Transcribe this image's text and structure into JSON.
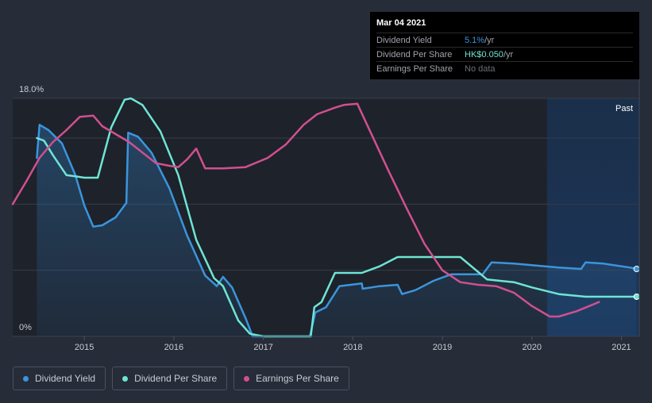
{
  "tooltip": {
    "date": "Mar 04 2021",
    "rows": [
      {
        "label": "Dividend Yield",
        "value": "5.1%",
        "unit": " /yr",
        "color": "#3a95dd"
      },
      {
        "label": "Dividend Per Share",
        "value": "HK$0.050",
        "unit": " /yr",
        "color": "#6ee5d4"
      },
      {
        "label": "Earnings Per Share",
        "value": "No data",
        "unit": "",
        "color": "#6b6f75"
      }
    ]
  },
  "legend": [
    {
      "label": "Dividend Yield",
      "color": "#3a95dd"
    },
    {
      "label": "Dividend Per Share",
      "color": "#6ee5d4"
    },
    {
      "label": "Earnings Per Share",
      "color": "#d0508f"
    }
  ],
  "chart_data": {
    "type": "line",
    "title": "",
    "xlabel": "",
    "ylabel": "",
    "xlim": [
      2014.2,
      2021.2
    ],
    "ylim": [
      0,
      18
    ],
    "y_tick_labels": [
      "18.0%",
      "0%"
    ],
    "x_ticks": [
      2015,
      2016,
      2017,
      2018,
      2019,
      2020,
      2021
    ],
    "x_tick_labels": [
      "2015",
      "2016",
      "2017",
      "2018",
      "2019",
      "2020",
      "2021"
    ],
    "past_label": "Past",
    "past_region_start": 2020.17,
    "series": [
      {
        "name": "Dividend Yield",
        "color": "#3a95dd",
        "fill": true,
        "x": [
          2014.47,
          2014.5,
          2014.6,
          2014.75,
          2014.9,
          2015.0,
          2015.1,
          2015.2,
          2015.35,
          2015.47,
          2015.49,
          2015.6,
          2015.75,
          2015.95,
          2016.15,
          2016.35,
          2016.48,
          2016.55,
          2016.65,
          2016.8,
          2016.88,
          2017.0,
          2017.3,
          2017.52,
          2017.58,
          2017.7,
          2017.85,
          2018.1,
          2018.11,
          2018.3,
          2018.5,
          2018.55,
          2018.7,
          2018.9,
          2019.1,
          2019.2,
          2019.3,
          2019.45,
          2019.55,
          2019.8,
          2020.3,
          2020.55,
          2020.6,
          2020.8,
          2021.1,
          2021.17
        ],
        "values": [
          13.5,
          16.0,
          15.6,
          14.6,
          12.2,
          9.9,
          8.3,
          8.4,
          9.0,
          10.1,
          15.4,
          15.1,
          13.9,
          11.2,
          7.6,
          4.6,
          3.8,
          4.5,
          3.7,
          1.4,
          0.0,
          0.0,
          0.0,
          0.0,
          1.8,
          2.2,
          3.8,
          4.0,
          3.6,
          3.8,
          3.9,
          3.2,
          3.5,
          4.2,
          4.7,
          4.7,
          4.7,
          4.7,
          5.6,
          5.5,
          5.2,
          5.1,
          5.6,
          5.5,
          5.2,
          5.1
        ],
        "end_marker": true
      },
      {
        "name": "Dividend Per Share",
        "color": "#6ee5d4",
        "fill": false,
        "x": [
          2014.47,
          2014.55,
          2014.65,
          2014.8,
          2014.9,
          2015.0,
          2015.15,
          2015.3,
          2015.45,
          2015.52,
          2015.65,
          2015.85,
          2016.05,
          2016.25,
          2016.45,
          2016.55,
          2016.72,
          2016.85,
          2017.0,
          2017.3,
          2017.53,
          2017.57,
          2017.65,
          2017.8,
          2018.1,
          2018.3,
          2018.5,
          2018.7,
          2019.1,
          2019.2,
          2019.5,
          2019.8,
          2020.0,
          2020.3,
          2020.6,
          2021.17
        ],
        "values": [
          15.0,
          14.8,
          13.7,
          12.2,
          12.1,
          12.0,
          12.0,
          15.8,
          17.9,
          18.0,
          17.5,
          15.5,
          12.2,
          7.3,
          4.4,
          3.8,
          1.2,
          0.2,
          0.0,
          0.0,
          0.0,
          2.2,
          2.6,
          4.8,
          4.8,
          5.3,
          6.0,
          6.0,
          6.0,
          6.0,
          4.3,
          4.1,
          3.7,
          3.2,
          3.0,
          3.0
        ],
        "end_marker": true
      },
      {
        "name": "Earnings Per Share",
        "color": "#d0508f",
        "fill": false,
        "x": [
          2014.2,
          2014.35,
          2014.5,
          2014.65,
          2014.8,
          2014.95,
          2015.1,
          2015.2,
          2015.35,
          2015.5,
          2015.65,
          2015.8,
          2015.95,
          2016.05,
          2016.15,
          2016.25,
          2016.35,
          2016.55,
          2016.8,
          2017.05,
          2017.25,
          2017.45,
          2017.6,
          2017.8,
          2017.9,
          2018.05,
          2018.2,
          2018.4,
          2018.6,
          2018.8,
          2019.0,
          2019.2,
          2019.4,
          2019.6,
          2019.8,
          2020.0,
          2020.2,
          2020.3,
          2020.5,
          2020.75
        ],
        "values": [
          10.0,
          11.7,
          13.5,
          14.7,
          15.6,
          16.6,
          16.7,
          15.9,
          15.3,
          14.7,
          13.9,
          13.1,
          12.9,
          12.8,
          13.4,
          14.2,
          12.7,
          12.7,
          12.8,
          13.5,
          14.5,
          16.0,
          16.8,
          17.3,
          17.5,
          17.6,
          15.4,
          12.5,
          9.7,
          7.0,
          5.0,
          4.1,
          3.9,
          3.8,
          3.3,
          2.3,
          1.5,
          1.5,
          1.9,
          2.6
        ],
        "end_marker": false
      }
    ]
  }
}
